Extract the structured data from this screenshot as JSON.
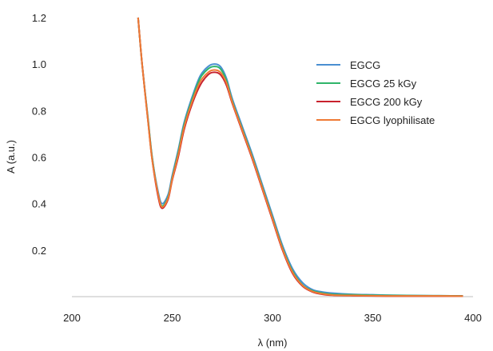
{
  "chart_data": {
    "type": "line",
    "xlabel": "λ (nm)",
    "ylabel": "A (a.u.)",
    "xlim": [
      200,
      400
    ],
    "ylim": [
      0,
      1.2
    ],
    "x_ticks": [
      "200",
      "250",
      "300",
      "350",
      "400"
    ],
    "y_ticks": [
      "0.2",
      "0.4",
      "0.6",
      "0.8",
      "1.0",
      "1.2"
    ],
    "grid": false,
    "legend_position": "top-right",
    "series": [
      {
        "name": "EGCG",
        "color": "#4a8fd1",
        "x": [
          233,
          235,
          238,
          240,
          243,
          245,
          248,
          250,
          253,
          256,
          260,
          264,
          268,
          271,
          274,
          277,
          280,
          285,
          290,
          295,
          300,
          305,
          310,
          315,
          320,
          325,
          330,
          340,
          350,
          360,
          380,
          395
        ],
        "y": [
          1.2,
          1.0,
          0.76,
          0.6,
          0.45,
          0.4,
          0.44,
          0.52,
          0.63,
          0.75,
          0.86,
          0.95,
          0.99,
          1.0,
          0.99,
          0.94,
          0.85,
          0.73,
          0.61,
          0.48,
          0.35,
          0.22,
          0.12,
          0.06,
          0.03,
          0.02,
          0.015,
          0.01,
          0.008,
          0.006,
          0.004,
          0.003
        ]
      },
      {
        "name": "EGCG 25 kGy",
        "color": "#2fb56a",
        "x": [
          233,
          235,
          238,
          240,
          243,
          245,
          248,
          250,
          253,
          256,
          260,
          264,
          268,
          271,
          274,
          277,
          280,
          285,
          290,
          295,
          300,
          305,
          310,
          315,
          320,
          325,
          330,
          340,
          350,
          360,
          380,
          395
        ],
        "y": [
          1.2,
          1.0,
          0.76,
          0.6,
          0.44,
          0.39,
          0.43,
          0.51,
          0.62,
          0.74,
          0.85,
          0.94,
          0.98,
          0.99,
          0.98,
          0.93,
          0.84,
          0.72,
          0.6,
          0.47,
          0.34,
          0.21,
          0.11,
          0.05,
          0.025,
          0.015,
          0.01,
          0.008,
          0.006,
          0.005,
          0.004,
          0.003
        ]
      },
      {
        "name": "EGCG 200 kGy",
        "color": "#c8222d",
        "x": [
          233,
          235,
          238,
          240,
          243,
          245,
          248,
          250,
          253,
          256,
          260,
          264,
          268,
          271,
          274,
          277,
          280,
          285,
          290,
          295,
          300,
          305,
          310,
          315,
          320,
          325,
          330,
          340,
          350,
          360,
          380,
          395
        ],
        "y": [
          1.2,
          1.0,
          0.75,
          0.59,
          0.43,
          0.38,
          0.42,
          0.5,
          0.6,
          0.72,
          0.83,
          0.91,
          0.955,
          0.965,
          0.955,
          0.91,
          0.83,
          0.71,
          0.59,
          0.46,
          0.33,
          0.2,
          0.1,
          0.045,
          0.02,
          0.01,
          0.006,
          0.004,
          0.003,
          0.002,
          0.002,
          0.002
        ]
      },
      {
        "name": "EGCG lyophilisate",
        "color": "#ef7a35",
        "x": [
          233,
          235,
          238,
          240,
          243,
          245,
          248,
          250,
          253,
          256,
          260,
          264,
          268,
          271,
          274,
          277,
          280,
          285,
          290,
          295,
          300,
          305,
          310,
          315,
          320,
          325,
          330,
          340,
          350,
          360,
          380,
          395
        ],
        "y": [
          1.2,
          1.0,
          0.75,
          0.59,
          0.44,
          0.385,
          0.425,
          0.505,
          0.61,
          0.73,
          0.84,
          0.925,
          0.965,
          0.975,
          0.965,
          0.92,
          0.835,
          0.715,
          0.595,
          0.465,
          0.335,
          0.205,
          0.105,
          0.048,
          0.022,
          0.012,
          0.007,
          0.005,
          0.004,
          0.003,
          0.003,
          0.002
        ]
      }
    ]
  }
}
